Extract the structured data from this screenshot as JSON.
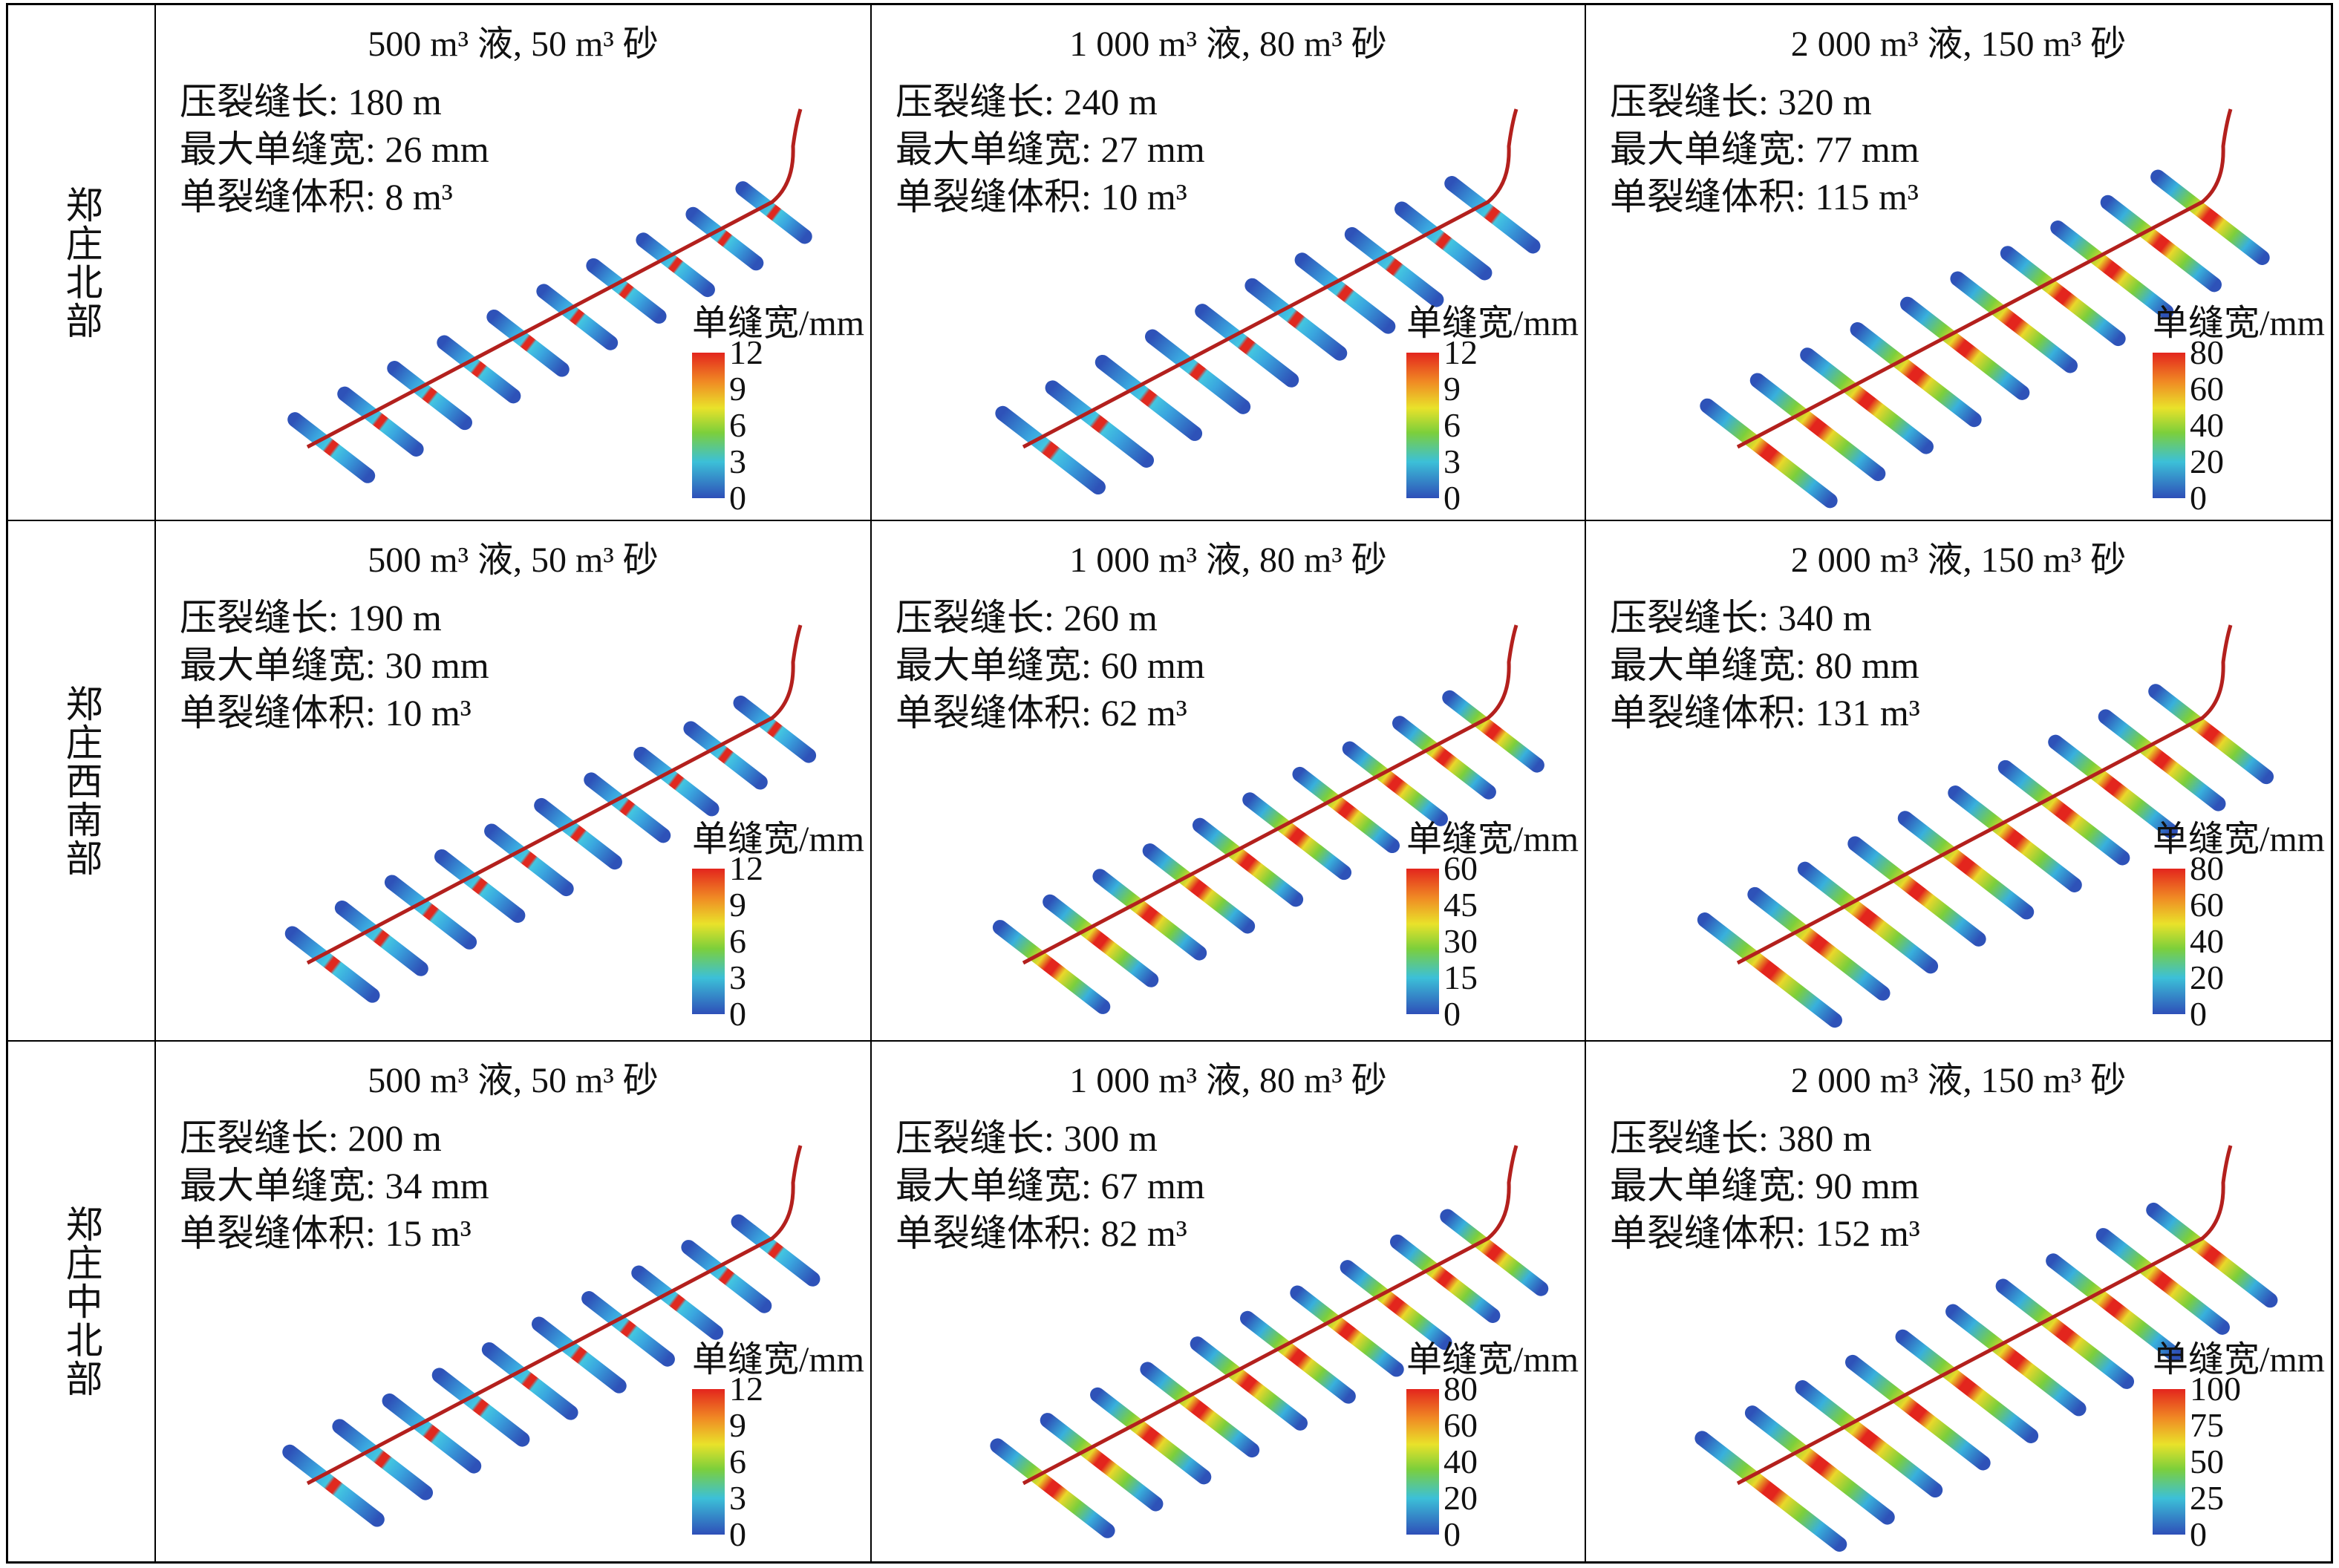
{
  "rows": [
    {
      "label": "郑庄北部",
      "cells": [
        {
          "title": "500 m³ 液, 50 m³ 砂",
          "stats": [
            "压裂缝长: 180 m",
            "最大单缝宽: 26 mm",
            "单裂缝体积: 8 m³"
          ],
          "colorbar": {
            "label": "单缝宽/mm",
            "ticks": [
              12,
              9,
              6,
              3,
              0
            ]
          }
        },
        {
          "title": "1 000 m³ 液, 80 m³ 砂",
          "stats": [
            "压裂缝长: 240 m",
            "最大单缝宽: 27 mm",
            "单裂缝体积: 10 m³"
          ],
          "colorbar": {
            "label": "单缝宽/mm",
            "ticks": [
              12,
              9,
              6,
              3,
              0
            ]
          }
        },
        {
          "title": "2 000 m³ 液, 150 m³ 砂",
          "stats": [
            "压裂缝长: 320 m",
            "最大单缝宽: 77 mm",
            "单裂缝体积: 115 m³"
          ],
          "colorbar": {
            "label": "单缝宽/mm",
            "ticks": [
              80,
              60,
              40,
              20,
              0
            ]
          }
        }
      ]
    },
    {
      "label": "郑庄西南部",
      "cells": [
        {
          "title": "500 m³ 液, 50 m³ 砂",
          "stats": [
            "压裂缝长: 190 m",
            "最大单缝宽: 30 mm",
            "单裂缝体积: 10 m³"
          ],
          "colorbar": {
            "label": "单缝宽/mm",
            "ticks": [
              12,
              9,
              6,
              3,
              0
            ]
          }
        },
        {
          "title": "1 000 m³ 液, 80 m³ 砂",
          "stats": [
            "压裂缝长: 260 m",
            "最大单缝宽: 60 mm",
            "单裂缝体积: 62 m³"
          ],
          "colorbar": {
            "label": "单缝宽/mm",
            "ticks": [
              60,
              45,
              30,
              15,
              0
            ]
          }
        },
        {
          "title": "2 000 m³ 液, 150 m³ 砂",
          "stats": [
            "压裂缝长: 340 m",
            "最大单缝宽: 80 mm",
            "单裂缝体积: 131 m³"
          ],
          "colorbar": {
            "label": "单缝宽/mm",
            "ticks": [
              80,
              60,
              40,
              20,
              0
            ]
          }
        }
      ]
    },
    {
      "label": "郑庄中北部",
      "cells": [
        {
          "title": "500 m³ 液, 50 m³ 砂",
          "stats": [
            "压裂缝长: 200 m",
            "最大单缝宽: 34 mm",
            "单裂缝体积: 15 m³"
          ],
          "colorbar": {
            "label": "单缝宽/mm",
            "ticks": [
              12,
              9,
              6,
              3,
              0
            ]
          }
        },
        {
          "title": "1 000 m³ 液, 80 m³ 砂",
          "stats": [
            "压裂缝长: 300 m",
            "最大单缝宽: 67 mm",
            "单裂缝体积: 82 m³"
          ],
          "colorbar": {
            "label": "单缝宽/mm",
            "ticks": [
              80,
              60,
              40,
              20,
              0
            ]
          }
        },
        {
          "title": "2 000 m³ 液, 150 m³ 砂",
          "stats": [
            "压裂缝长: 380 m",
            "最大单缝宽: 90 mm",
            "单裂缝体积: 152 m³"
          ],
          "colorbar": {
            "label": "单缝宽/mm",
            "ticks": [
              100,
              75,
              50,
              25,
              0
            ]
          }
        }
      ]
    }
  ]
}
